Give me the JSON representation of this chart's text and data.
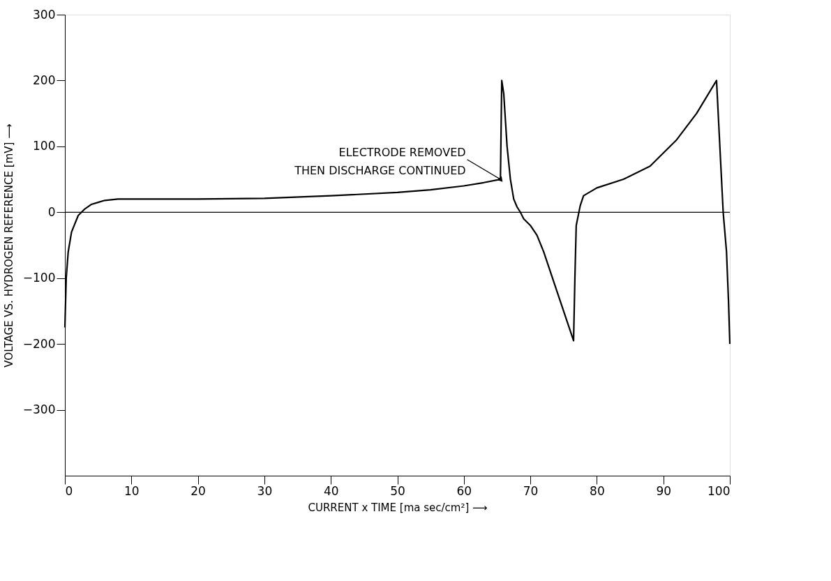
{
  "chart_data": {
    "type": "line",
    "xlabel": "CURRENT x TIME [ma sec/cm²] ⟶",
    "ylabel": "VOLTAGE VS. HYDROGEN REFERENCE [mV] ⟶",
    "x": [
      0,
      0.2,
      0.5,
      1,
      2,
      3,
      4,
      5,
      6,
      8,
      10,
      20,
      30,
      40,
      50,
      55,
      60,
      63,
      65.5,
      65.7,
      66,
      66.5,
      67,
      67.5,
      68,
      68.5,
      69,
      70,
      71,
      72,
      74,
      76.5,
      76.7,
      76.9,
      77.5,
      78,
      80,
      84,
      88,
      92,
      95,
      98,
      99,
      99.5,
      99.8,
      100
    ],
    "series": [
      {
        "color": "#000000",
        "values": [
          -175,
          -100,
          -60,
          -30,
          -5,
          5,
          12,
          15,
          18,
          20,
          20,
          20,
          21,
          25,
          30,
          34,
          40,
          45,
          50,
          200,
          180,
          100,
          50,
          20,
          8,
          0,
          -10,
          -20,
          -35,
          -60,
          -120,
          -195,
          -100,
          -20,
          10,
          25,
          37,
          50,
          70,
          110,
          150,
          200,
          0,
          -60,
          -135,
          -200
        ]
      }
    ],
    "xlim": [
      0,
      100
    ],
    "xticks": [
      0,
      10,
      20,
      30,
      40,
      50,
      60,
      70,
      80,
      90,
      100
    ],
    "ylim": [
      -400,
      300
    ],
    "yticks": [
      -300,
      -200,
      -100,
      0,
      100,
      200,
      300
    ],
    "ref_lines": [
      {
        "axis": "y",
        "value": 0,
        "label": null
      }
    ],
    "annotations": [
      {
        "text": "ELECTRODE REMOVED\nTHEN DISCHARGE CONTINUED",
        "x": 65.5,
        "y": 50
      }
    ],
    "grid": false,
    "marker": "none",
    "line_style": "solid"
  }
}
